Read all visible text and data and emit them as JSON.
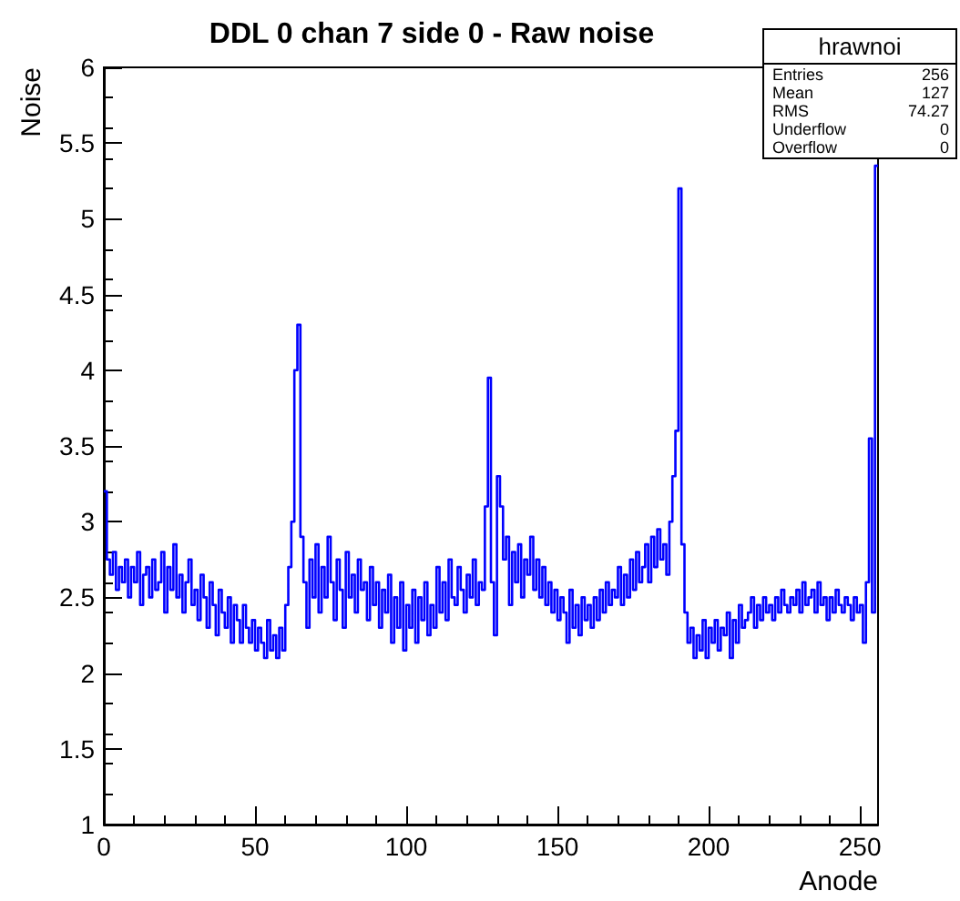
{
  "chart_data": {
    "type": "histogram",
    "title": "DDL 0 chan 7 side 0 - Raw noise",
    "xlabel": "Anode",
    "ylabel": "Noise",
    "annotations": [
      "hrawnoi",
      "Entries 256",
      "Mean 127",
      "RMS 74.27",
      "Underflow 0",
      "Overflow 0"
    ],
    "color": "#0000ff",
    "xlim": [
      0,
      256
    ],
    "xticks": [
      0,
      50,
      100,
      150,
      200,
      250
    ],
    "ylim": [
      1,
      6
    ],
    "yticks": [
      {
        "value": 1,
        "label": "1"
      },
      {
        "value": 1.5,
        "label": "1.5"
      },
      {
        "value": 2,
        "label": "2"
      },
      {
        "value": 2.5,
        "label": "2.5"
      },
      {
        "value": 3,
        "label": "3"
      },
      {
        "value": 3.5,
        "label": "3.5"
      },
      {
        "value": 4,
        "label": "4"
      },
      {
        "value": 4.5,
        "label": "4.5"
      },
      {
        "value": 5,
        "label": "5"
      },
      {
        "value": 5.5,
        "label": "5.5"
      },
      {
        "value": 6,
        "label": "6"
      }
    ],
    "grid": false,
    "bins": [
      0,
      1,
      2,
      3,
      4,
      5,
      6,
      7,
      8,
      9,
      10,
      11,
      12,
      13,
      14,
      15,
      16,
      17,
      18,
      19,
      20,
      21,
      22,
      23,
      24,
      25,
      26,
      27,
      28,
      29,
      30,
      31,
      32,
      33,
      34,
      35,
      36,
      37,
      38,
      39,
      40,
      41,
      42,
      43,
      44,
      45,
      46,
      47,
      48,
      49,
      50,
      51,
      52,
      53,
      54,
      55,
      56,
      57,
      58,
      59,
      60,
      61,
      62,
      63,
      64,
      65,
      66,
      67,
      68,
      69,
      70,
      71,
      72,
      73,
      74,
      75,
      76,
      77,
      78,
      79,
      80,
      81,
      82,
      83,
      84,
      85,
      86,
      87,
      88,
      89,
      90,
      91,
      92,
      93,
      94,
      95,
      96,
      97,
      98,
      99,
      100,
      101,
      102,
      103,
      104,
      105,
      106,
      107,
      108,
      109,
      110,
      111,
      112,
      113,
      114,
      115,
      116,
      117,
      118,
      119,
      120,
      121,
      122,
      123,
      124,
      125,
      126,
      127,
      128,
      129,
      130,
      131,
      132,
      133,
      134,
      135,
      136,
      137,
      138,
      139,
      140,
      141,
      142,
      143,
      144,
      145,
      146,
      147,
      148,
      149,
      150,
      151,
      152,
      153,
      154,
      155,
      156,
      157,
      158,
      159,
      160,
      161,
      162,
      163,
      164,
      165,
      166,
      167,
      168,
      169,
      170,
      171,
      172,
      173,
      174,
      175,
      176,
      177,
      178,
      179,
      180,
      181,
      182,
      183,
      184,
      185,
      186,
      187,
      188,
      189,
      190,
      191,
      192,
      193,
      194,
      195,
      196,
      197,
      198,
      199,
      200,
      201,
      202,
      203,
      204,
      205,
      206,
      207,
      208,
      209,
      210,
      211,
      212,
      213,
      214,
      215,
      216,
      217,
      218,
      219,
      220,
      221,
      222,
      223,
      224,
      225,
      226,
      227,
      228,
      229,
      230,
      231,
      232,
      233,
      234,
      235,
      236,
      237,
      238,
      239,
      240,
      241,
      242,
      243,
      244,
      245,
      246,
      247,
      248,
      249,
      250,
      251,
      252,
      253,
      254,
      255,
      256
    ],
    "values": [
      3.2,
      2.75,
      2.65,
      2.8,
      2.55,
      2.7,
      2.6,
      2.75,
      2.5,
      2.7,
      2.6,
      2.8,
      2.45,
      2.65,
      2.7,
      2.5,
      2.75,
      2.55,
      2.6,
      2.8,
      2.4,
      2.7,
      2.55,
      2.85,
      2.5,
      2.65,
      2.4,
      2.6,
      2.75,
      2.45,
      2.55,
      2.35,
      2.65,
      2.5,
      2.3,
      2.6,
      2.45,
      2.25,
      2.55,
      2.4,
      2.3,
      2.5,
      2.2,
      2.45,
      2.35,
      2.2,
      2.45,
      2.3,
      2.2,
      2.35,
      2.15,
      2.3,
      2.2,
      2.1,
      2.35,
      2.15,
      2.25,
      2.1,
      2.3,
      2.15,
      2.45,
      2.7,
      3.0,
      4.0,
      4.3,
      2.9,
      2.6,
      2.3,
      2.75,
      2.5,
      2.85,
      2.4,
      2.7,
      2.5,
      2.9,
      2.6,
      2.35,
      2.75,
      2.55,
      2.3,
      2.8,
      2.5,
      2.65,
      2.4,
      2.75,
      2.55,
      2.6,
      2.35,
      2.7,
      2.45,
      2.6,
      2.3,
      2.55,
      2.4,
      2.65,
      2.2,
      2.5,
      2.3,
      2.6,
      2.15,
      2.45,
      2.3,
      2.55,
      2.2,
      2.5,
      2.35,
      2.6,
      2.25,
      2.45,
      2.3,
      2.7,
      2.4,
      2.6,
      2.35,
      2.75,
      2.5,
      2.45,
      2.7,
      2.55,
      2.4,
      2.65,
      2.5,
      2.75,
      2.45,
      2.6,
      2.55,
      3.1,
      3.95,
      2.6,
      2.25,
      3.3,
      3.1,
      2.75,
      2.9,
      2.45,
      2.8,
      2.6,
      2.85,
      2.5,
      2.75,
      2.65,
      2.9,
      2.55,
      2.75,
      2.5,
      2.7,
      2.45,
      2.6,
      2.4,
      2.55,
      2.35,
      2.5,
      2.4,
      2.2,
      2.55,
      2.3,
      2.45,
      2.25,
      2.5,
      2.35,
      2.45,
      2.3,
      2.5,
      2.35,
      2.55,
      2.4,
      2.6,
      2.45,
      2.55,
      2.5,
      2.7,
      2.45,
      2.65,
      2.5,
      2.75,
      2.55,
      2.8,
      2.6,
      2.7,
      2.85,
      2.6,
      2.9,
      2.7,
      2.95,
      2.75,
      2.85,
      2.65,
      3.0,
      3.3,
      3.6,
      5.2,
      2.85,
      2.4,
      2.2,
      2.3,
      2.1,
      2.25,
      2.15,
      2.35,
      2.1,
      2.3,
      2.2,
      2.35,
      2.15,
      2.3,
      2.25,
      2.4,
      2.1,
      2.35,
      2.2,
      2.45,
      2.3,
      2.35,
      2.4,
      2.5,
      2.3,
      2.45,
      2.35,
      2.5,
      2.4,
      2.45,
      2.35,
      2.5,
      2.4,
      2.55,
      2.45,
      2.4,
      2.5,
      2.45,
      2.55,
      2.4,
      2.6,
      2.45,
      2.5,
      2.55,
      2.4,
      2.6,
      2.45,
      2.5,
      2.35,
      2.5,
      2.4,
      2.55,
      2.45,
      2.4,
      2.5,
      2.45,
      2.35,
      2.5,
      2.4,
      2.45,
      2.2,
      2.6,
      3.55,
      2.4,
      5.35
    ]
  }
}
